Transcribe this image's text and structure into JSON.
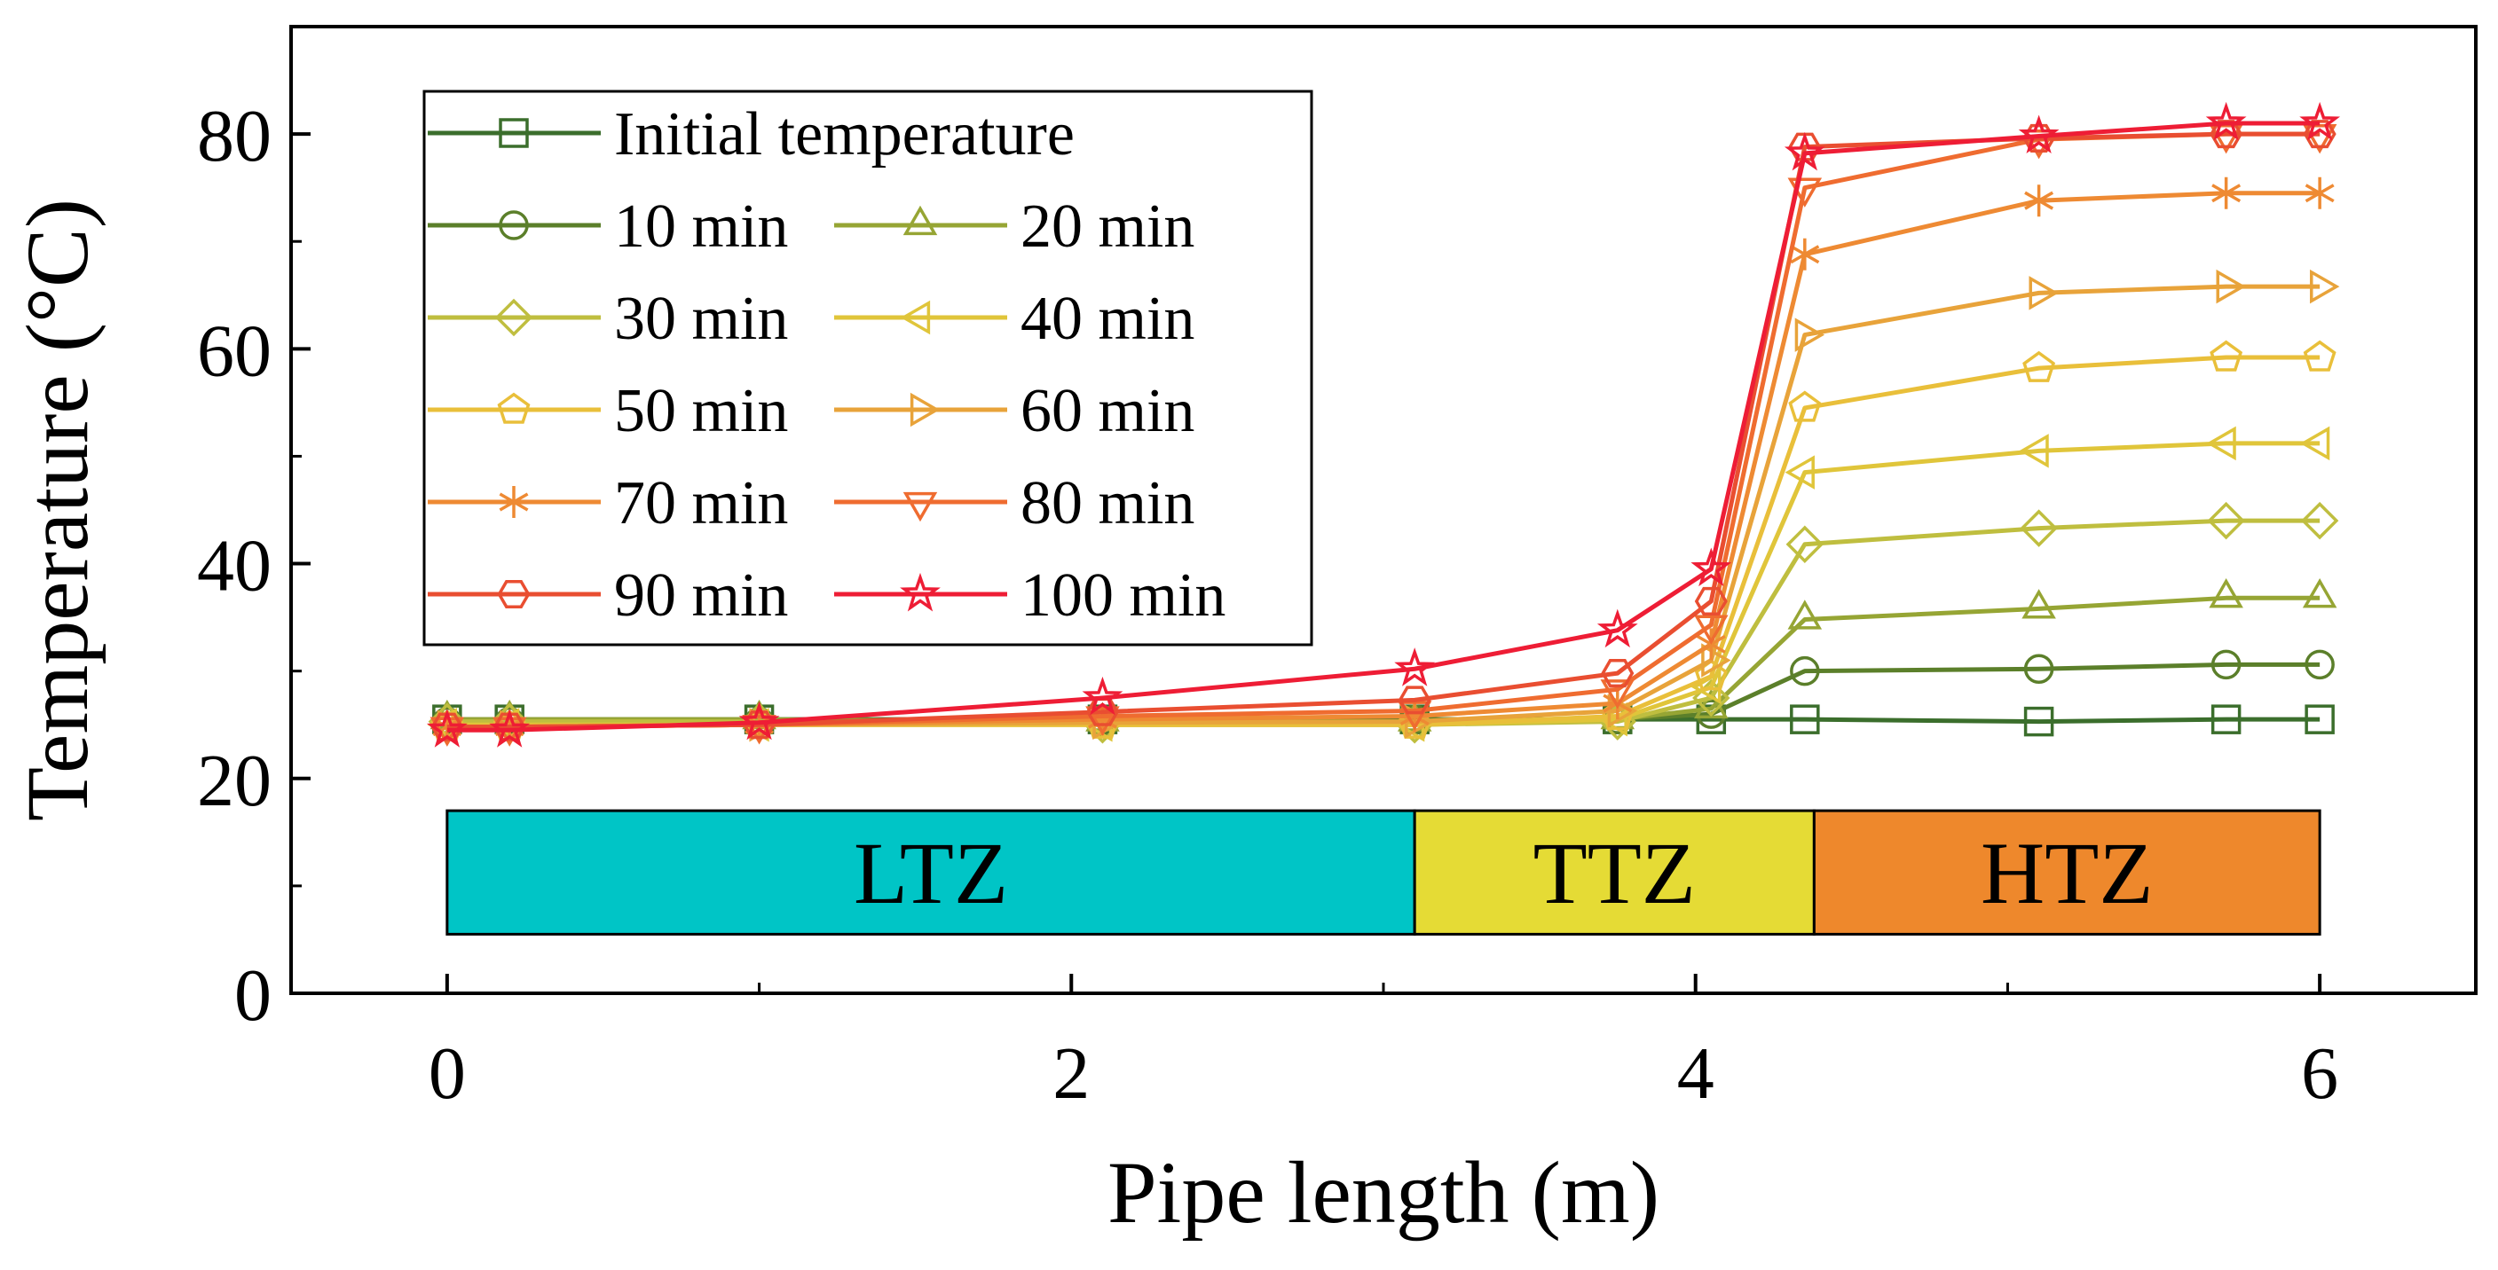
{
  "chart_data": {
    "type": "line",
    "xlabel": "Pipe length (m)",
    "ylabel": "Temperature (°C)",
    "xlim": [
      -0.5,
      6.5
    ],
    "ylim": [
      0,
      90
    ],
    "xticks": [
      0,
      2,
      4,
      6
    ],
    "yticks": [
      0,
      20,
      40,
      60,
      80
    ],
    "grid": false,
    "legend_position": "top-left",
    "x": [
      0,
      0.2,
      1.0,
      2.1,
      3.1,
      3.75,
      4.05,
      4.35,
      5.1,
      5.7,
      6.0
    ],
    "series": [
      {
        "name": "Initial temperature",
        "marker": "square",
        "color": "#3b6e2c",
        "values": [
          25.5,
          25.5,
          25.5,
          25.5,
          25.5,
          25.5,
          25.5,
          25.5,
          25.3,
          25.5,
          25.5
        ]
      },
      {
        "name": "10 min",
        "marker": "circle",
        "color": "#5b7f2a",
        "values": [
          25.3,
          25.3,
          25.3,
          25.3,
          25.5,
          25.5,
          26.0,
          30.0,
          30.2,
          30.6,
          30.6
        ]
      },
      {
        "name": "20 min",
        "marker": "triangle-up",
        "color": "#96a534",
        "values": [
          25.5,
          25.5,
          25.5,
          25.3,
          25.3,
          25.5,
          26.5,
          34.8,
          35.8,
          36.8,
          36.8
        ]
      },
      {
        "name": "30 min",
        "marker": "diamond",
        "color": "#bfbe3f",
        "values": [
          25.3,
          25.3,
          25.3,
          25.0,
          25.0,
          25.3,
          27.5,
          41.8,
          43.3,
          44.0,
          44.0
        ]
      },
      {
        "name": "40 min",
        "marker": "triangle-left",
        "color": "#e0c53a",
        "values": [
          25.0,
          25.0,
          25.0,
          25.0,
          25.0,
          25.5,
          28.5,
          48.5,
          50.5,
          51.2,
          51.2
        ]
      },
      {
        "name": "50 min",
        "marker": "pentagon",
        "color": "#e9bf3a",
        "values": [
          24.8,
          24.8,
          25.0,
          25.0,
          25.0,
          25.8,
          29.5,
          54.5,
          58.2,
          59.2,
          59.2
        ]
      },
      {
        "name": "60 min",
        "marker": "triangle-right",
        "color": "#e8a33a",
        "values": [
          24.8,
          24.8,
          25.0,
          25.2,
          25.3,
          26.3,
          31.0,
          61.3,
          65.2,
          65.8,
          65.8
        ]
      },
      {
        "name": "70 min",
        "marker": "asterisk",
        "color": "#ee8a33",
        "values": [
          24.8,
          24.8,
          25.0,
          25.5,
          25.8,
          27.0,
          32.5,
          68.8,
          73.8,
          74.5,
          74.5
        ]
      },
      {
        "name": "80 min",
        "marker": "triangle-down",
        "color": "#ef6c30",
        "values": [
          24.8,
          24.8,
          25.0,
          25.8,
          26.3,
          28.3,
          34.3,
          75.0,
          79.5,
          80.0,
          80.0
        ]
      },
      {
        "name": "90 min",
        "marker": "hexagon",
        "color": "#e94e31",
        "values": [
          24.8,
          24.8,
          25.0,
          26.2,
          27.3,
          29.8,
          36.5,
          78.8,
          79.6,
          80.0,
          80.0
        ]
      },
      {
        "name": "100 min",
        "marker": "star",
        "color": "#ee1d35",
        "values": [
          24.5,
          24.5,
          25.2,
          27.5,
          30.2,
          33.8,
          39.5,
          78.2,
          79.8,
          81.0,
          81.0
        ]
      }
    ],
    "zones": [
      {
        "label": "LTZ",
        "x_start": 0,
        "x_end": 3.1,
        "y_start": 5.5,
        "y_end": 17,
        "color": "#00c5c6"
      },
      {
        "label": "TTZ",
        "x_start": 3.1,
        "x_end": 4.38,
        "y_start": 5.5,
        "y_end": 17,
        "color": "#e5db35"
      },
      {
        "label": "HTZ",
        "x_start": 4.38,
        "x_end": 6.0,
        "y_start": 5.5,
        "y_end": 17,
        "color": "#ee882c"
      }
    ]
  }
}
